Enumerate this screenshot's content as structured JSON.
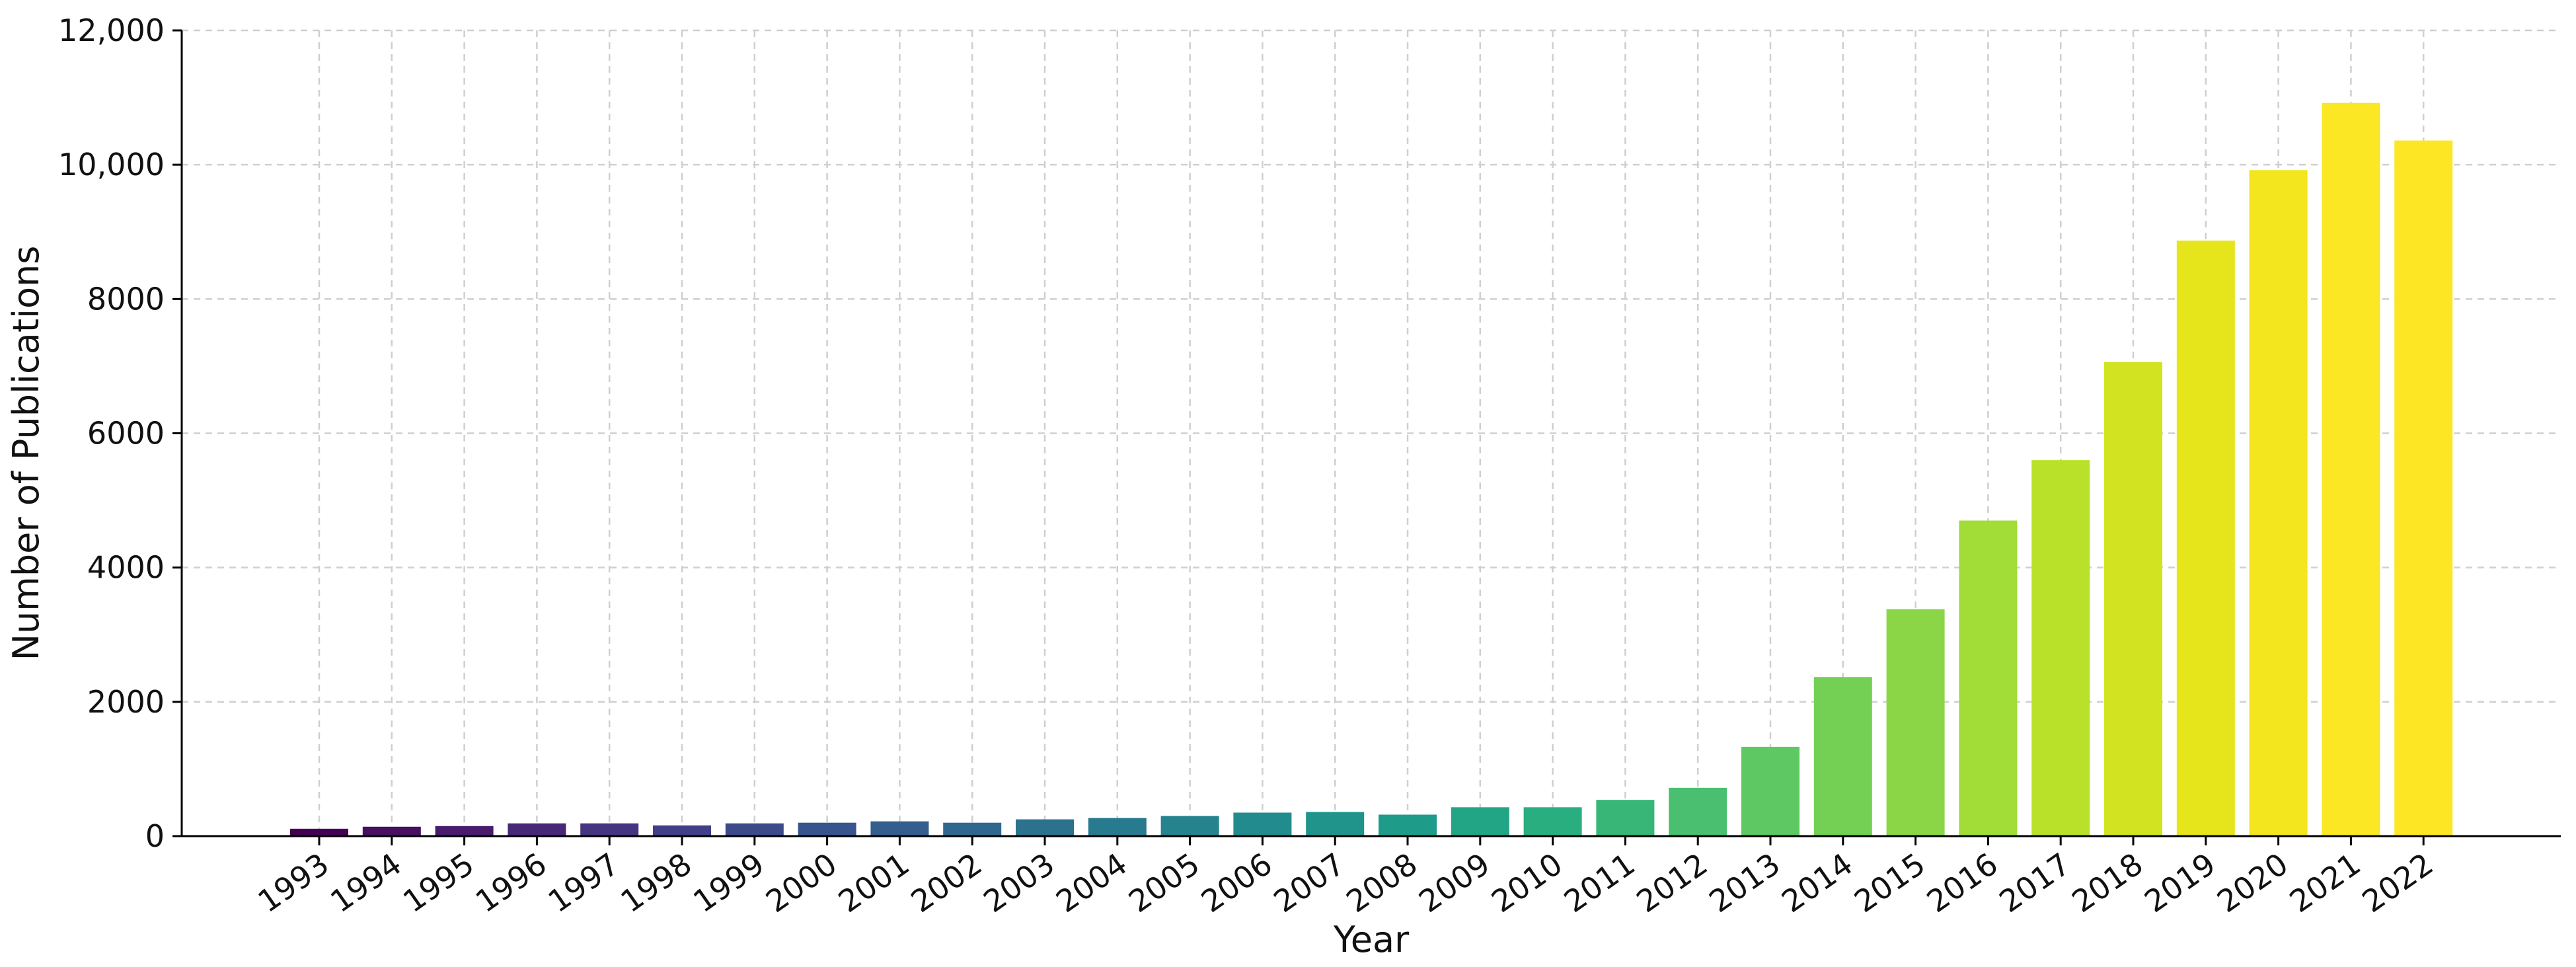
{
  "chart_data": {
    "type": "bar",
    "title": "",
    "xlabel": "Year",
    "ylabel": "Number of Publications",
    "categories": [
      "1993",
      "1994",
      "1995",
      "1996",
      "1997",
      "1998",
      "1999",
      "2000",
      "2001",
      "2002",
      "2003",
      "2004",
      "2005",
      "2006",
      "2007",
      "2008",
      "2009",
      "2010",
      "2011",
      "2012",
      "2013",
      "2014",
      "2015",
      "2016",
      "2017",
      "2018",
      "2019",
      "2020",
      "2021",
      "2022"
    ],
    "values": [
      110,
      140,
      150,
      190,
      190,
      160,
      190,
      200,
      220,
      200,
      250,
      270,
      300,
      350,
      360,
      320,
      430,
      430,
      540,
      720,
      1330,
      2370,
      3380,
      4700,
      5600,
      7060,
      8870,
      9920,
      10920,
      10360
    ],
    "ylim": [
      0,
      12000
    ],
    "yticks": [
      0,
      2000,
      4000,
      6000,
      8000,
      10000,
      12000
    ],
    "ytick_labels": [
      "0",
      "2000",
      "4000",
      "6000",
      "8000",
      "10,000",
      "12,000"
    ],
    "grid": true,
    "colors": [
      "#440154",
      "#470e61",
      "#481b6d",
      "#472877",
      "#453480",
      "#413f87",
      "#3d4a8a",
      "#38548c",
      "#345e8d",
      "#2f688e",
      "#2c718e",
      "#287a8e",
      "#25838e",
      "#228b8d",
      "#20948b",
      "#1e9c89",
      "#21a585",
      "#29ae80",
      "#37b678",
      "#4abf6f",
      "#5ec863",
      "#74d055",
      "#8ad647",
      "#a1dc37",
      "#b9e129",
      "#d1e321",
      "#e6e51b",
      "#f3e51e",
      "#fbe723",
      "#fde725"
    ]
  }
}
